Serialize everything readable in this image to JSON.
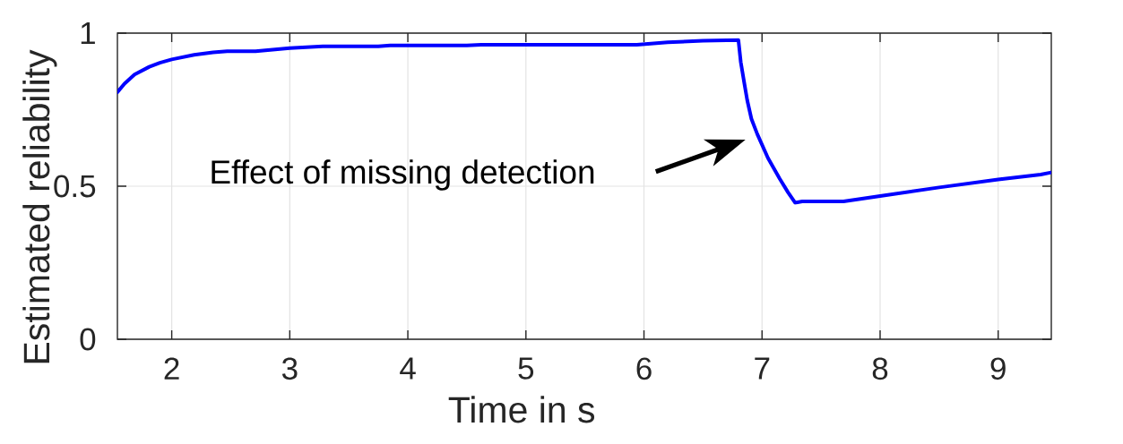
{
  "chart_data": {
    "type": "line",
    "xlabel": "Time in s",
    "ylabel": "Estimated reliability",
    "x": [
      1.54,
      1.6,
      1.685,
      1.81,
      1.9,
      2.0,
      2.19,
      2.35,
      2.47,
      2.71,
      3.0,
      3.28,
      3.75,
      3.85,
      4.5,
      4.62,
      5.94,
      6.2,
      6.5,
      6.8,
      6.82,
      6.85,
      6.875,
      6.91,
      6.96,
      7.05,
      7.15,
      7.22,
      7.28,
      7.34,
      7.69,
      8.0,
      8.5,
      9.0,
      9.36,
      9.45
    ],
    "series": [
      {
        "color": "#0000ff",
        "values": [
          0.807,
          0.835,
          0.865,
          0.89,
          0.903,
          0.914,
          0.929,
          0.937,
          0.941,
          0.941,
          0.951,
          0.957,
          0.957,
          0.96,
          0.96,
          0.962,
          0.962,
          0.97,
          0.975,
          0.977,
          0.905,
          0.836,
          0.78,
          0.72,
          0.67,
          0.592,
          0.524,
          0.48,
          0.446,
          0.45,
          0.45,
          0.468,
          0.496,
          0.522,
          0.538,
          0.545
        ]
      }
    ],
    "xlim": [
      1.54,
      9.45
    ],
    "ylim": [
      0,
      1
    ],
    "xticks": [
      2,
      3,
      4,
      5,
      6,
      7,
      8,
      9
    ],
    "yticks": [
      0,
      0.5,
      1
    ],
    "grid": true,
    "annotations": [
      "Effect of missing detection"
    ]
  }
}
